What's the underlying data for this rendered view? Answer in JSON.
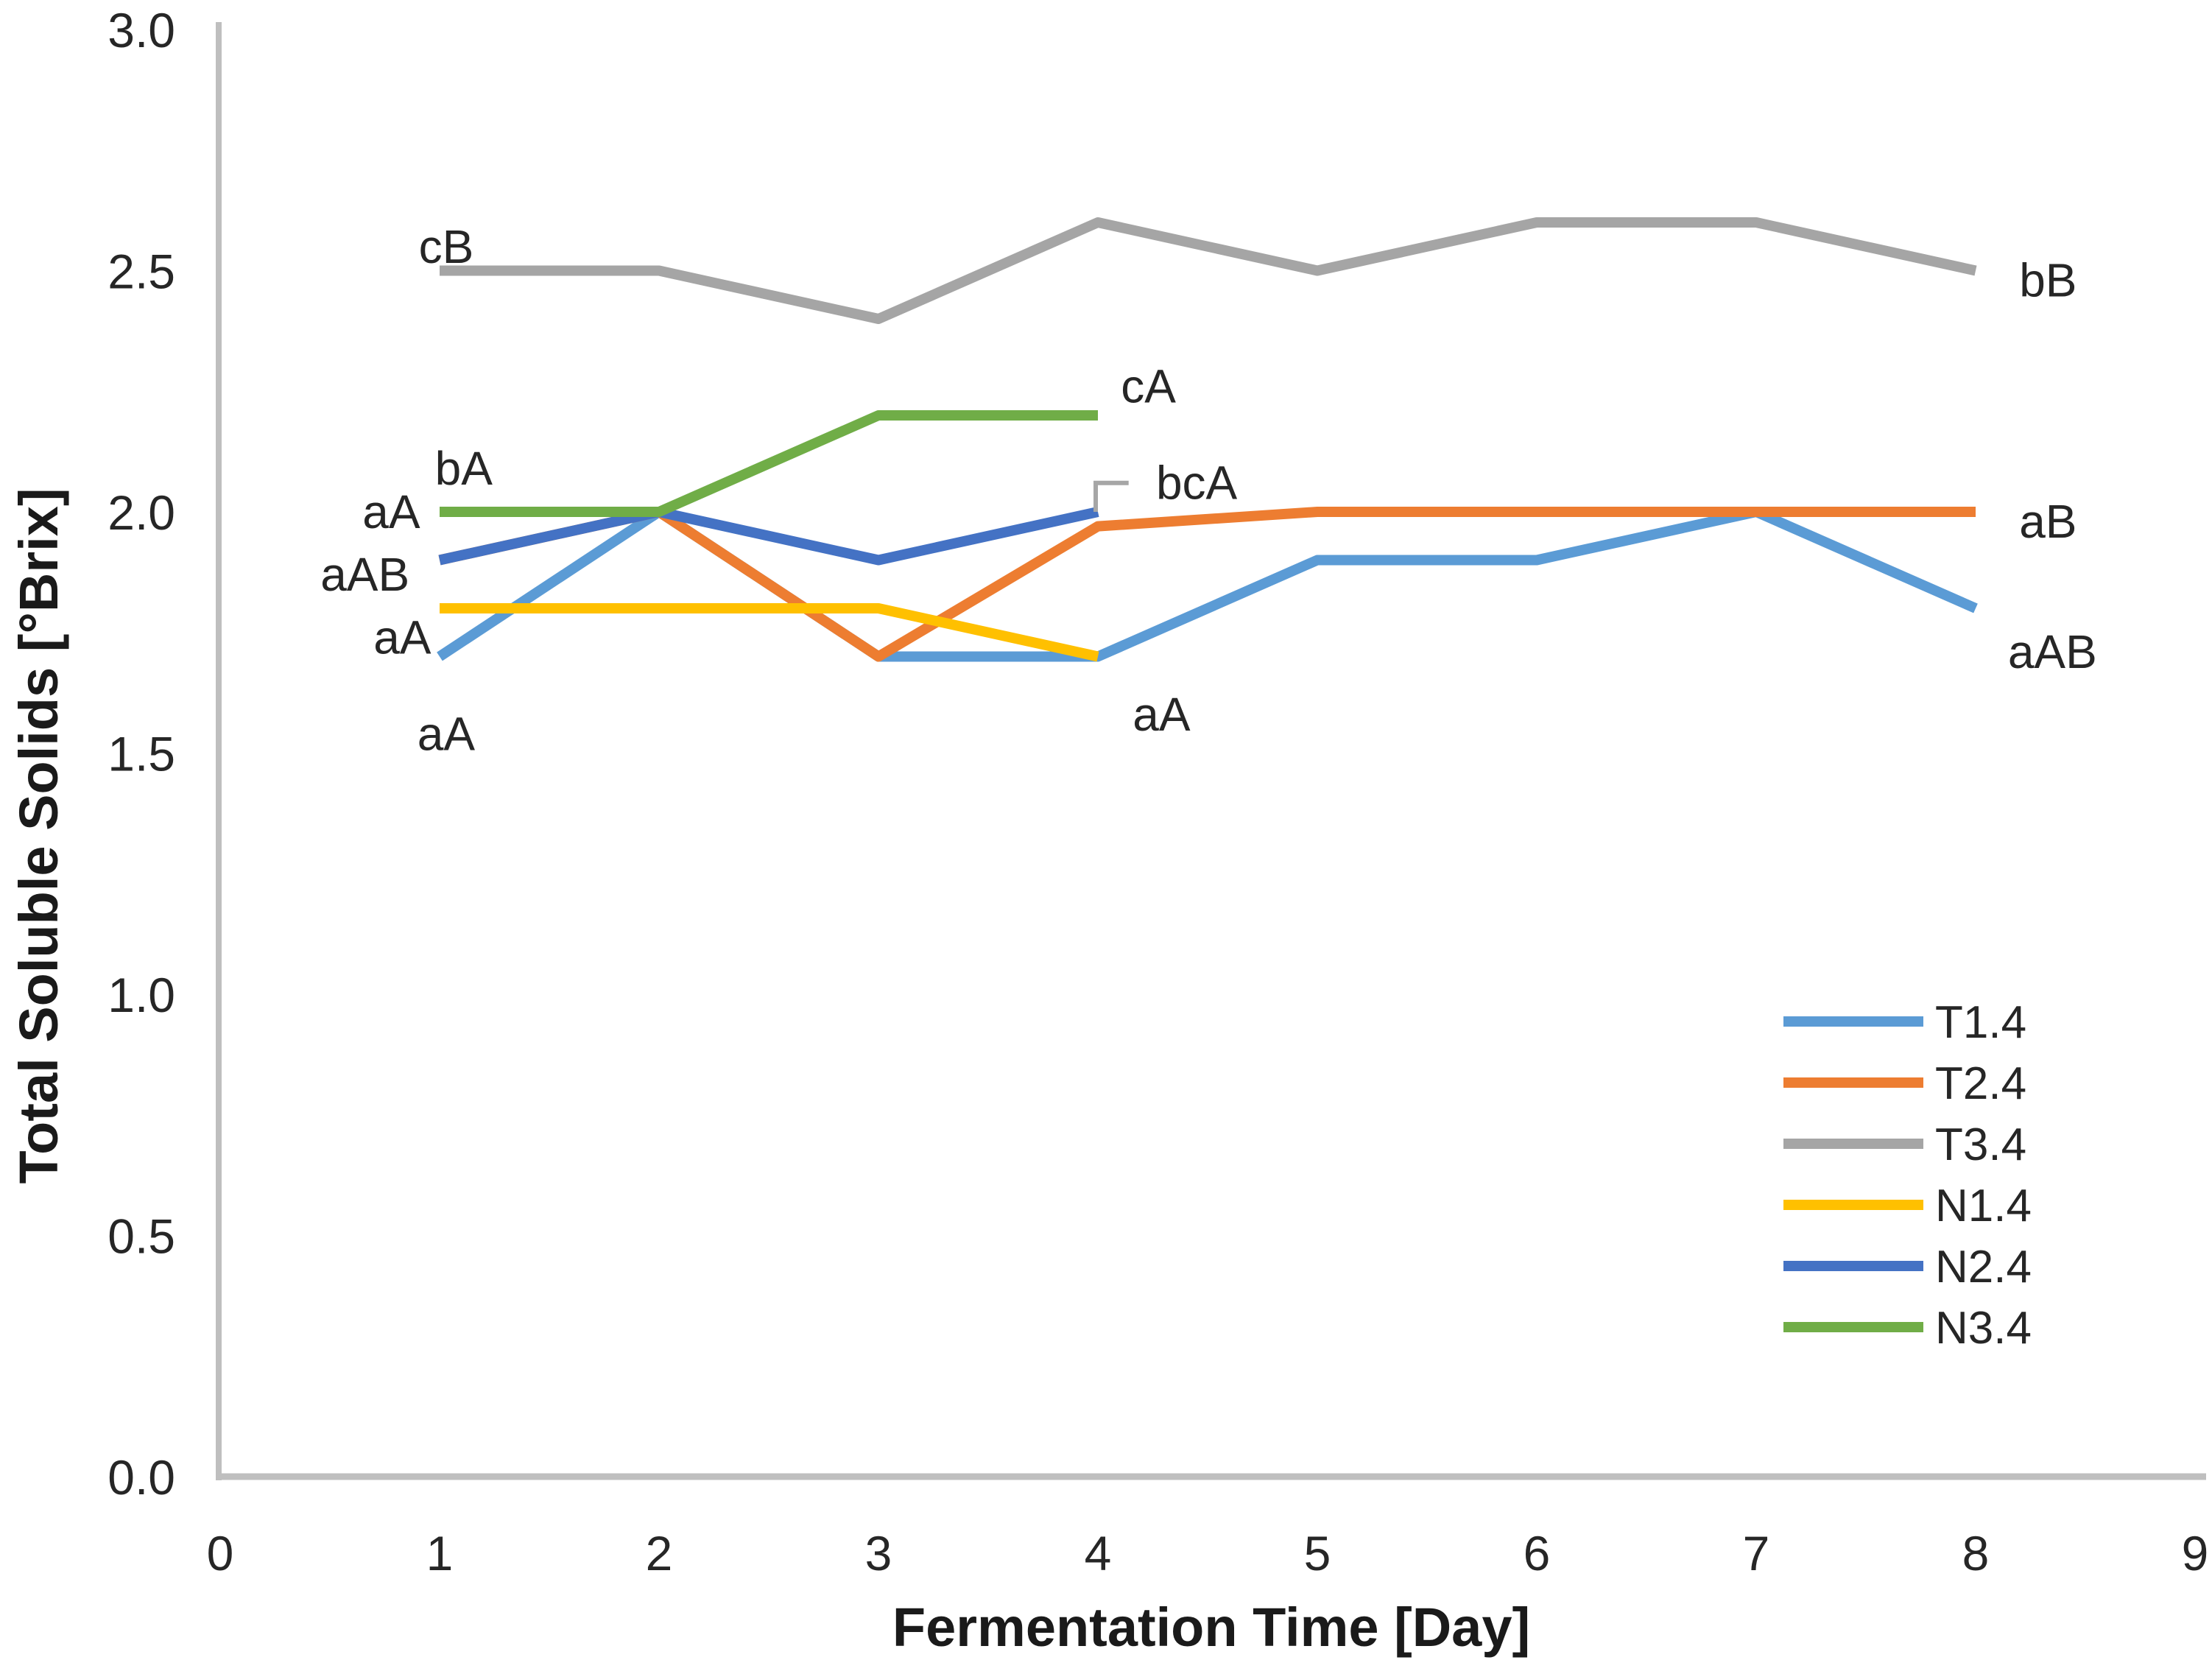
{
  "chart_data": {
    "type": "line",
    "title": "",
    "xlabel": "Fermentation Time [Day]",
    "ylabel": "Total Soluble Solids [°Brix]",
    "xlim": [
      0,
      9
    ],
    "ylim": [
      0.0,
      3.0
    ],
    "grid": false,
    "legend_position": "right-middle",
    "x_tick_values": [
      0,
      1,
      2,
      3,
      4,
      5,
      6,
      7,
      8,
      9
    ],
    "x_tick_labels": [
      "0",
      "1",
      "2",
      "3",
      "4",
      "5",
      "6",
      "7",
      "8",
      "9"
    ],
    "y_tick_values": [
      3.0,
      2.5,
      2.0,
      1.5,
      1.0,
      0.5,
      0.0
    ],
    "y_tick_labels": [
      "3.0",
      "2.5",
      "2.0",
      "1.5",
      "1.0",
      "0.5",
      "0.0"
    ],
    "axis_color": "#BFBFBF",
    "text_color": "#262626",
    "series": [
      {
        "name": "T1.4",
        "color": "#5B9BD5",
        "x": [
          1,
          2,
          3,
          4,
          5,
          6,
          7,
          8
        ],
        "values": [
          1.7,
          2.0,
          1.7,
          1.7,
          1.9,
          1.9,
          2.0,
          1.8
        ]
      },
      {
        "name": "T2.4",
        "color": "#ED7D31",
        "x": [
          1,
          2,
          3,
          4,
          5,
          6,
          7,
          8
        ],
        "values": [
          1.9,
          2.0,
          1.7,
          1.97,
          2.0,
          2.0,
          2.0,
          2.0
        ]
      },
      {
        "name": "T3.4",
        "color": "#A5A5A5",
        "x": [
          1,
          2,
          3,
          4,
          5,
          6,
          7,
          8
        ],
        "values": [
          2.5,
          2.5,
          2.4,
          2.6,
          2.5,
          2.6,
          2.6,
          2.5
        ]
      },
      {
        "name": "N1.4",
        "color": "#FFC000",
        "x": [
          1,
          2,
          3,
          4
        ],
        "values": [
          1.8,
          1.8,
          1.8,
          1.7
        ]
      },
      {
        "name": "N2.4",
        "color": "#4472C4",
        "x": [
          1,
          2,
          3,
          4
        ],
        "values": [
          1.9,
          2.0,
          1.9,
          2.0
        ]
      },
      {
        "name": "N3.4",
        "color": "#70AD47",
        "x": [
          1,
          2,
          3,
          4
        ],
        "values": [
          2.0,
          2.0,
          2.2,
          2.2
        ]
      }
    ],
    "annotations": [
      {
        "text": "cB",
        "x": 1.03,
        "y": 2.55
      },
      {
        "text": "bA",
        "x": 1.11,
        "y": 2.09
      },
      {
        "text": "aA",
        "x": 0.78,
        "y": 2.0
      },
      {
        "text": "aAB",
        "x": 0.66,
        "y": 1.87
      },
      {
        "text": "aA",
        "x": 0.83,
        "y": 1.74
      },
      {
        "text": "aA",
        "x": 1.03,
        "y": 1.54
      },
      {
        "text": "cA",
        "x": 4.23,
        "y": 2.26
      },
      {
        "text": "bcA",
        "x": 4.45,
        "y": 2.06
      },
      {
        "text": "aA",
        "x": 4.29,
        "y": 1.58
      },
      {
        "text": "bB",
        "x": 8.33,
        "y": 2.48
      },
      {
        "text": "aB",
        "x": 8.33,
        "y": 1.98
      },
      {
        "text": "aAB",
        "x": 8.35,
        "y": 1.71
      }
    ],
    "leader_line": {
      "color": "#A6A6A6",
      "points": [
        [
          3.99,
          2.0
        ],
        [
          3.99,
          2.06
        ],
        [
          4.14,
          2.06
        ]
      ]
    }
  }
}
